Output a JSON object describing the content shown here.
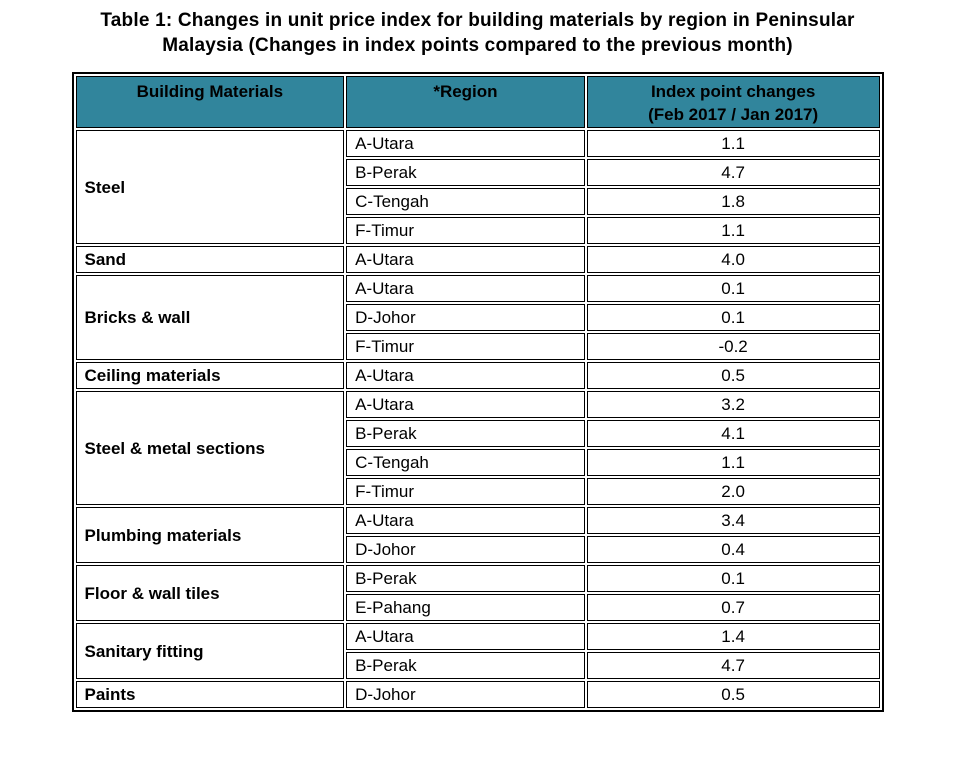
{
  "title": {
    "line1": "Table 1: Changes in unit price index for building materials by region in Peninsular",
    "line2": "Malaysia (Changes in index points compared to the previous month)"
  },
  "table": {
    "header_bg": "#31859C",
    "headers": {
      "materials": "Building Materials",
      "region": "*Region",
      "index_line1": "Index point changes",
      "index_line2": "(Feb 2017 / Jan 2017)"
    },
    "groups": [
      {
        "material": "Steel",
        "rows": [
          {
            "region": "A-Utara",
            "value": "1.1"
          },
          {
            "region": "B-Perak",
            "value": "4.7"
          },
          {
            "region": "C-Tengah",
            "value": "1.8"
          },
          {
            "region": "F-Timur",
            "value": "1.1"
          }
        ]
      },
      {
        "material": "Sand",
        "rows": [
          {
            "region": "A-Utara",
            "value": "4.0"
          }
        ]
      },
      {
        "material": "Bricks & wall",
        "rows": [
          {
            "region": "A-Utara",
            "value": "0.1"
          },
          {
            "region": "D-Johor",
            "value": "0.1"
          },
          {
            "region": "F-Timur",
            "value": "-0.2"
          }
        ]
      },
      {
        "material": "Ceiling materials",
        "rows": [
          {
            "region": "A-Utara",
            "value": "0.5"
          }
        ]
      },
      {
        "material": "Steel & metal sections",
        "rows": [
          {
            "region": "A-Utara",
            "value": "3.2"
          },
          {
            "region": "B-Perak",
            "value": "4.1"
          },
          {
            "region": "C-Tengah",
            "value": "1.1"
          },
          {
            "region": "F-Timur",
            "value": "2.0"
          }
        ]
      },
      {
        "material": "Plumbing materials",
        "rows": [
          {
            "region": "A-Utara",
            "value": "3.4"
          },
          {
            "region": "D-Johor",
            "value": "0.4"
          }
        ]
      },
      {
        "material": "Floor & wall tiles",
        "rows": [
          {
            "region": "B-Perak",
            "value": "0.1"
          },
          {
            "region": "E-Pahang",
            "value": "0.7"
          }
        ]
      },
      {
        "material": "Sanitary fitting",
        "rows": [
          {
            "region": "A-Utara",
            "value": "1.4"
          },
          {
            "region": "B-Perak",
            "value": "4.7"
          }
        ]
      },
      {
        "material": "Paints",
        "rows": [
          {
            "region": "D-Johor",
            "value": "0.5"
          }
        ]
      }
    ]
  }
}
